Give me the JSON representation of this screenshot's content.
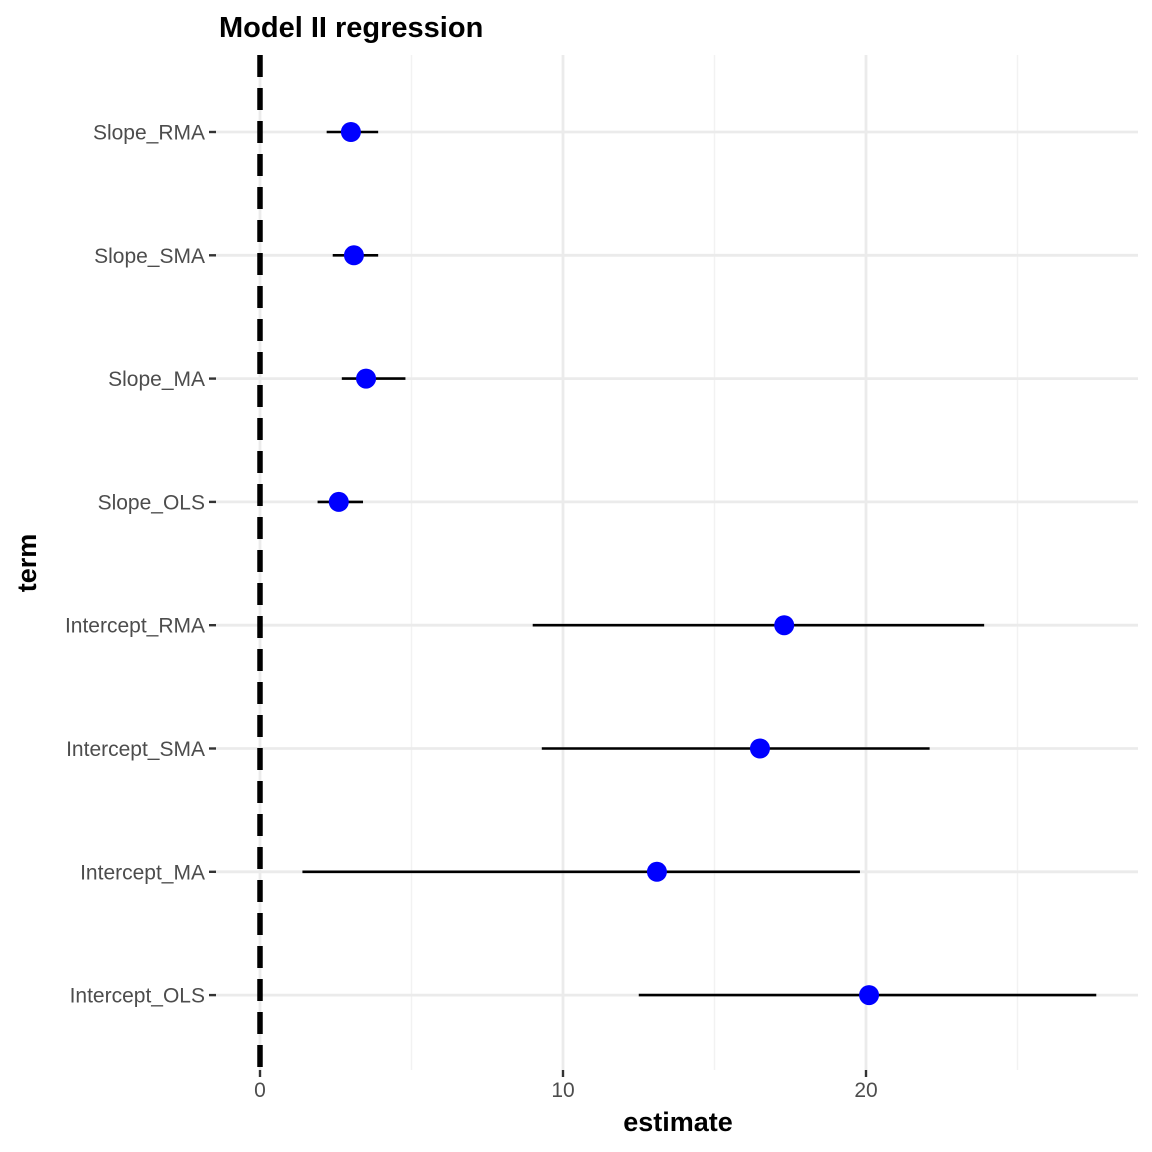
{
  "chart_data": {
    "type": "scatter",
    "title": "Model II regression",
    "xlabel": "estimate",
    "ylabel": "term",
    "xlim": [
      0,
      28.5
    ],
    "x_ticks": [
      0,
      10,
      20
    ],
    "x_minor_ticks": [
      5,
      15,
      25
    ],
    "grid": true,
    "reference_line": {
      "x": 0,
      "style": "dashed"
    },
    "point_color": "#0000ff",
    "categories": [
      "Slope_RMA",
      "Slope_SMA",
      "Slope_MA",
      "Slope_OLS",
      "Intercept_RMA",
      "Intercept_SMA",
      "Intercept_MA",
      "Intercept_OLS"
    ],
    "estimate": [
      3.0,
      3.1,
      3.5,
      2.6,
      17.3,
      16.5,
      13.1,
      20.1
    ],
    "conf_low": [
      2.2,
      2.4,
      2.7,
      1.9,
      9.0,
      9.3,
      1.4,
      12.5
    ],
    "conf_high": [
      3.9,
      3.9,
      4.8,
      3.4,
      23.9,
      22.1,
      19.8,
      27.6
    ]
  }
}
